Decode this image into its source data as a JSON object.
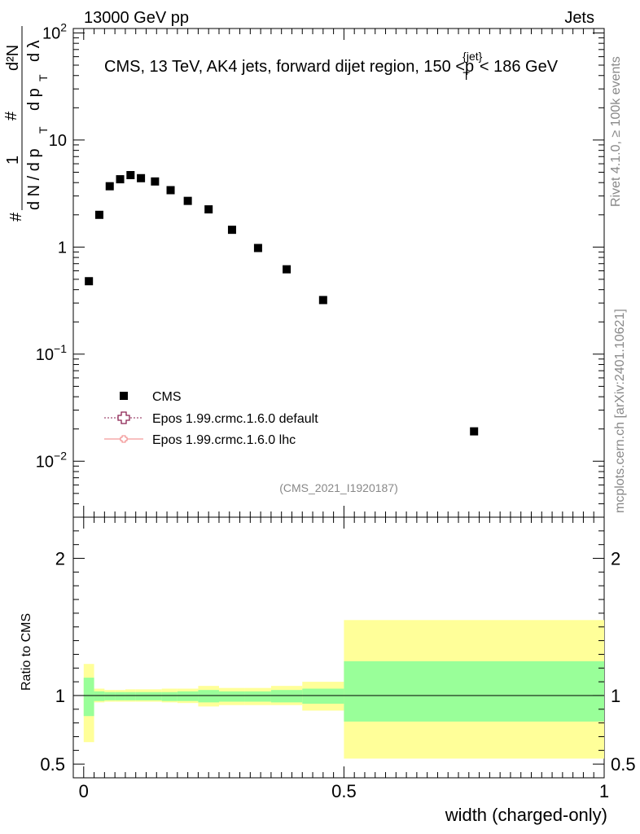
{
  "header": {
    "left": "13000 GeV pp",
    "right": "Jets"
  },
  "title": {
    "prefix": "CMS, 13 TeV, AK4 jets, forward dijet region, 150 <",
    "p": "p",
    "sub": "T",
    "sup": "{jet}",
    "suffix": "< 186 GeV"
  },
  "ylabel_main": {
    "hash1": "#",
    "one": "1",
    "frac_den": "d N / d p",
    "T1": "T",
    "hash2": "#",
    "d2N": "d²N",
    "num2_den": "d p",
    "T2": "T",
    "dlambda": "d λ"
  },
  "side_texts": {
    "rivet": "Rivet 4.1.0, ≥ 100k events",
    "mcplots": "mcplots.cern.ch [arXiv:2401.10621]"
  },
  "watermark": "(CMS_2021_I1920187)",
  "legend": [
    {
      "label": "CMS",
      "color": "#000000"
    },
    {
      "label": "Epos 1.99.crmc.1.6.0 default",
      "color": "#8b2252"
    },
    {
      "label": "Epos 1.99.crmc.1.6.0 lhc",
      "color": "#f08080"
    }
  ],
  "xlabel": "width (charged-only)",
  "ratio_ylabel": "Ratio to CMS",
  "colors": {
    "yellow": "#ffff99",
    "green": "#99ff99",
    "marker": "#000000"
  },
  "chart_data": [
    {
      "type": "scatter",
      "title": "CMS, 13 TeV, AK4 jets, forward dijet region, 150 < p_T^{jet} < 186 GeV",
      "yscale": "log",
      "ylim": [
        0.003,
        110
      ],
      "xlim": [
        -0.02,
        1.0
      ],
      "yticks": [
        {
          "value": 0.01,
          "base": "10",
          "exp": "−2"
        },
        {
          "value": 0.1,
          "base": "10",
          "exp": "−1"
        },
        {
          "value": 1,
          "label": "1"
        },
        {
          "value": 10,
          "label": "10"
        },
        {
          "value": 100,
          "base": "10",
          "exp": "2"
        }
      ],
      "series": [
        {
          "name": "CMS",
          "x": [
            0.01,
            0.03,
            0.05,
            0.07,
            0.09,
            0.11,
            0.137,
            0.167,
            0.2,
            0.24,
            0.285,
            0.335,
            0.39,
            0.46,
            0.75
          ],
          "y": [
            0.48,
            2.0,
            3.7,
            4.3,
            4.7,
            4.4,
            4.1,
            3.4,
            2.7,
            2.25,
            1.45,
            0.98,
            0.62,
            0.32,
            0.019
          ]
        }
      ]
    },
    {
      "type": "area",
      "title": "Ratio to CMS",
      "xlim": [
        -0.02,
        1.0
      ],
      "ylim": [
        0.4,
        2.3
      ],
      "yticks": [
        0.5,
        1,
        2
      ],
      "xticks": [
        0,
        0.5,
        1
      ],
      "xticklabels": [
        "0",
        "0.5",
        "1"
      ],
      "reference": 1.0,
      "bins": [
        {
          "lo": 0.0,
          "hi": 0.02,
          "stat_lo": 0.85,
          "stat_hi": 1.13,
          "tot_lo": 0.66,
          "tot_hi": 1.23
        },
        {
          "lo": 0.02,
          "hi": 0.04,
          "stat_lo": 0.96,
          "stat_hi": 1.03,
          "tot_lo": 0.95,
          "tot_hi": 1.05
        },
        {
          "lo": 0.04,
          "hi": 0.06,
          "stat_lo": 0.965,
          "stat_hi": 1.025,
          "tot_lo": 0.955,
          "tot_hi": 1.04
        },
        {
          "lo": 0.06,
          "hi": 0.08,
          "stat_lo": 0.965,
          "stat_hi": 1.025,
          "tot_lo": 0.955,
          "tot_hi": 1.04
        },
        {
          "lo": 0.08,
          "hi": 0.1,
          "stat_lo": 0.965,
          "stat_hi": 1.025,
          "tot_lo": 0.955,
          "tot_hi": 1.045
        },
        {
          "lo": 0.1,
          "hi": 0.12,
          "stat_lo": 0.965,
          "stat_hi": 1.025,
          "tot_lo": 0.955,
          "tot_hi": 1.045
        },
        {
          "lo": 0.12,
          "hi": 0.15,
          "stat_lo": 0.965,
          "stat_hi": 1.025,
          "tot_lo": 0.955,
          "tot_hi": 1.045
        },
        {
          "lo": 0.15,
          "hi": 0.18,
          "stat_lo": 0.96,
          "stat_hi": 1.025,
          "tot_lo": 0.95,
          "tot_hi": 1.05
        },
        {
          "lo": 0.18,
          "hi": 0.22,
          "stat_lo": 0.96,
          "stat_hi": 1.03,
          "tot_lo": 0.945,
          "tot_hi": 1.05
        },
        {
          "lo": 0.22,
          "hi": 0.26,
          "stat_lo": 0.95,
          "stat_hi": 1.04,
          "tot_lo": 0.92,
          "tot_hi": 1.07
        },
        {
          "lo": 0.26,
          "hi": 0.31,
          "stat_lo": 0.955,
          "stat_hi": 1.03,
          "tot_lo": 0.93,
          "tot_hi": 1.055
        },
        {
          "lo": 0.31,
          "hi": 0.36,
          "stat_lo": 0.955,
          "stat_hi": 1.03,
          "tot_lo": 0.93,
          "tot_hi": 1.055
        },
        {
          "lo": 0.36,
          "hi": 0.42,
          "stat_lo": 0.95,
          "stat_hi": 1.04,
          "tot_lo": 0.93,
          "tot_hi": 1.07
        },
        {
          "lo": 0.42,
          "hi": 0.5,
          "stat_lo": 0.94,
          "stat_hi": 1.05,
          "tot_lo": 0.89,
          "tot_hi": 1.1
        },
        {
          "lo": 0.5,
          "hi": 1.0,
          "stat_lo": 0.81,
          "stat_hi": 1.25,
          "tot_lo": 0.54,
          "tot_hi": 1.55
        }
      ]
    }
  ]
}
